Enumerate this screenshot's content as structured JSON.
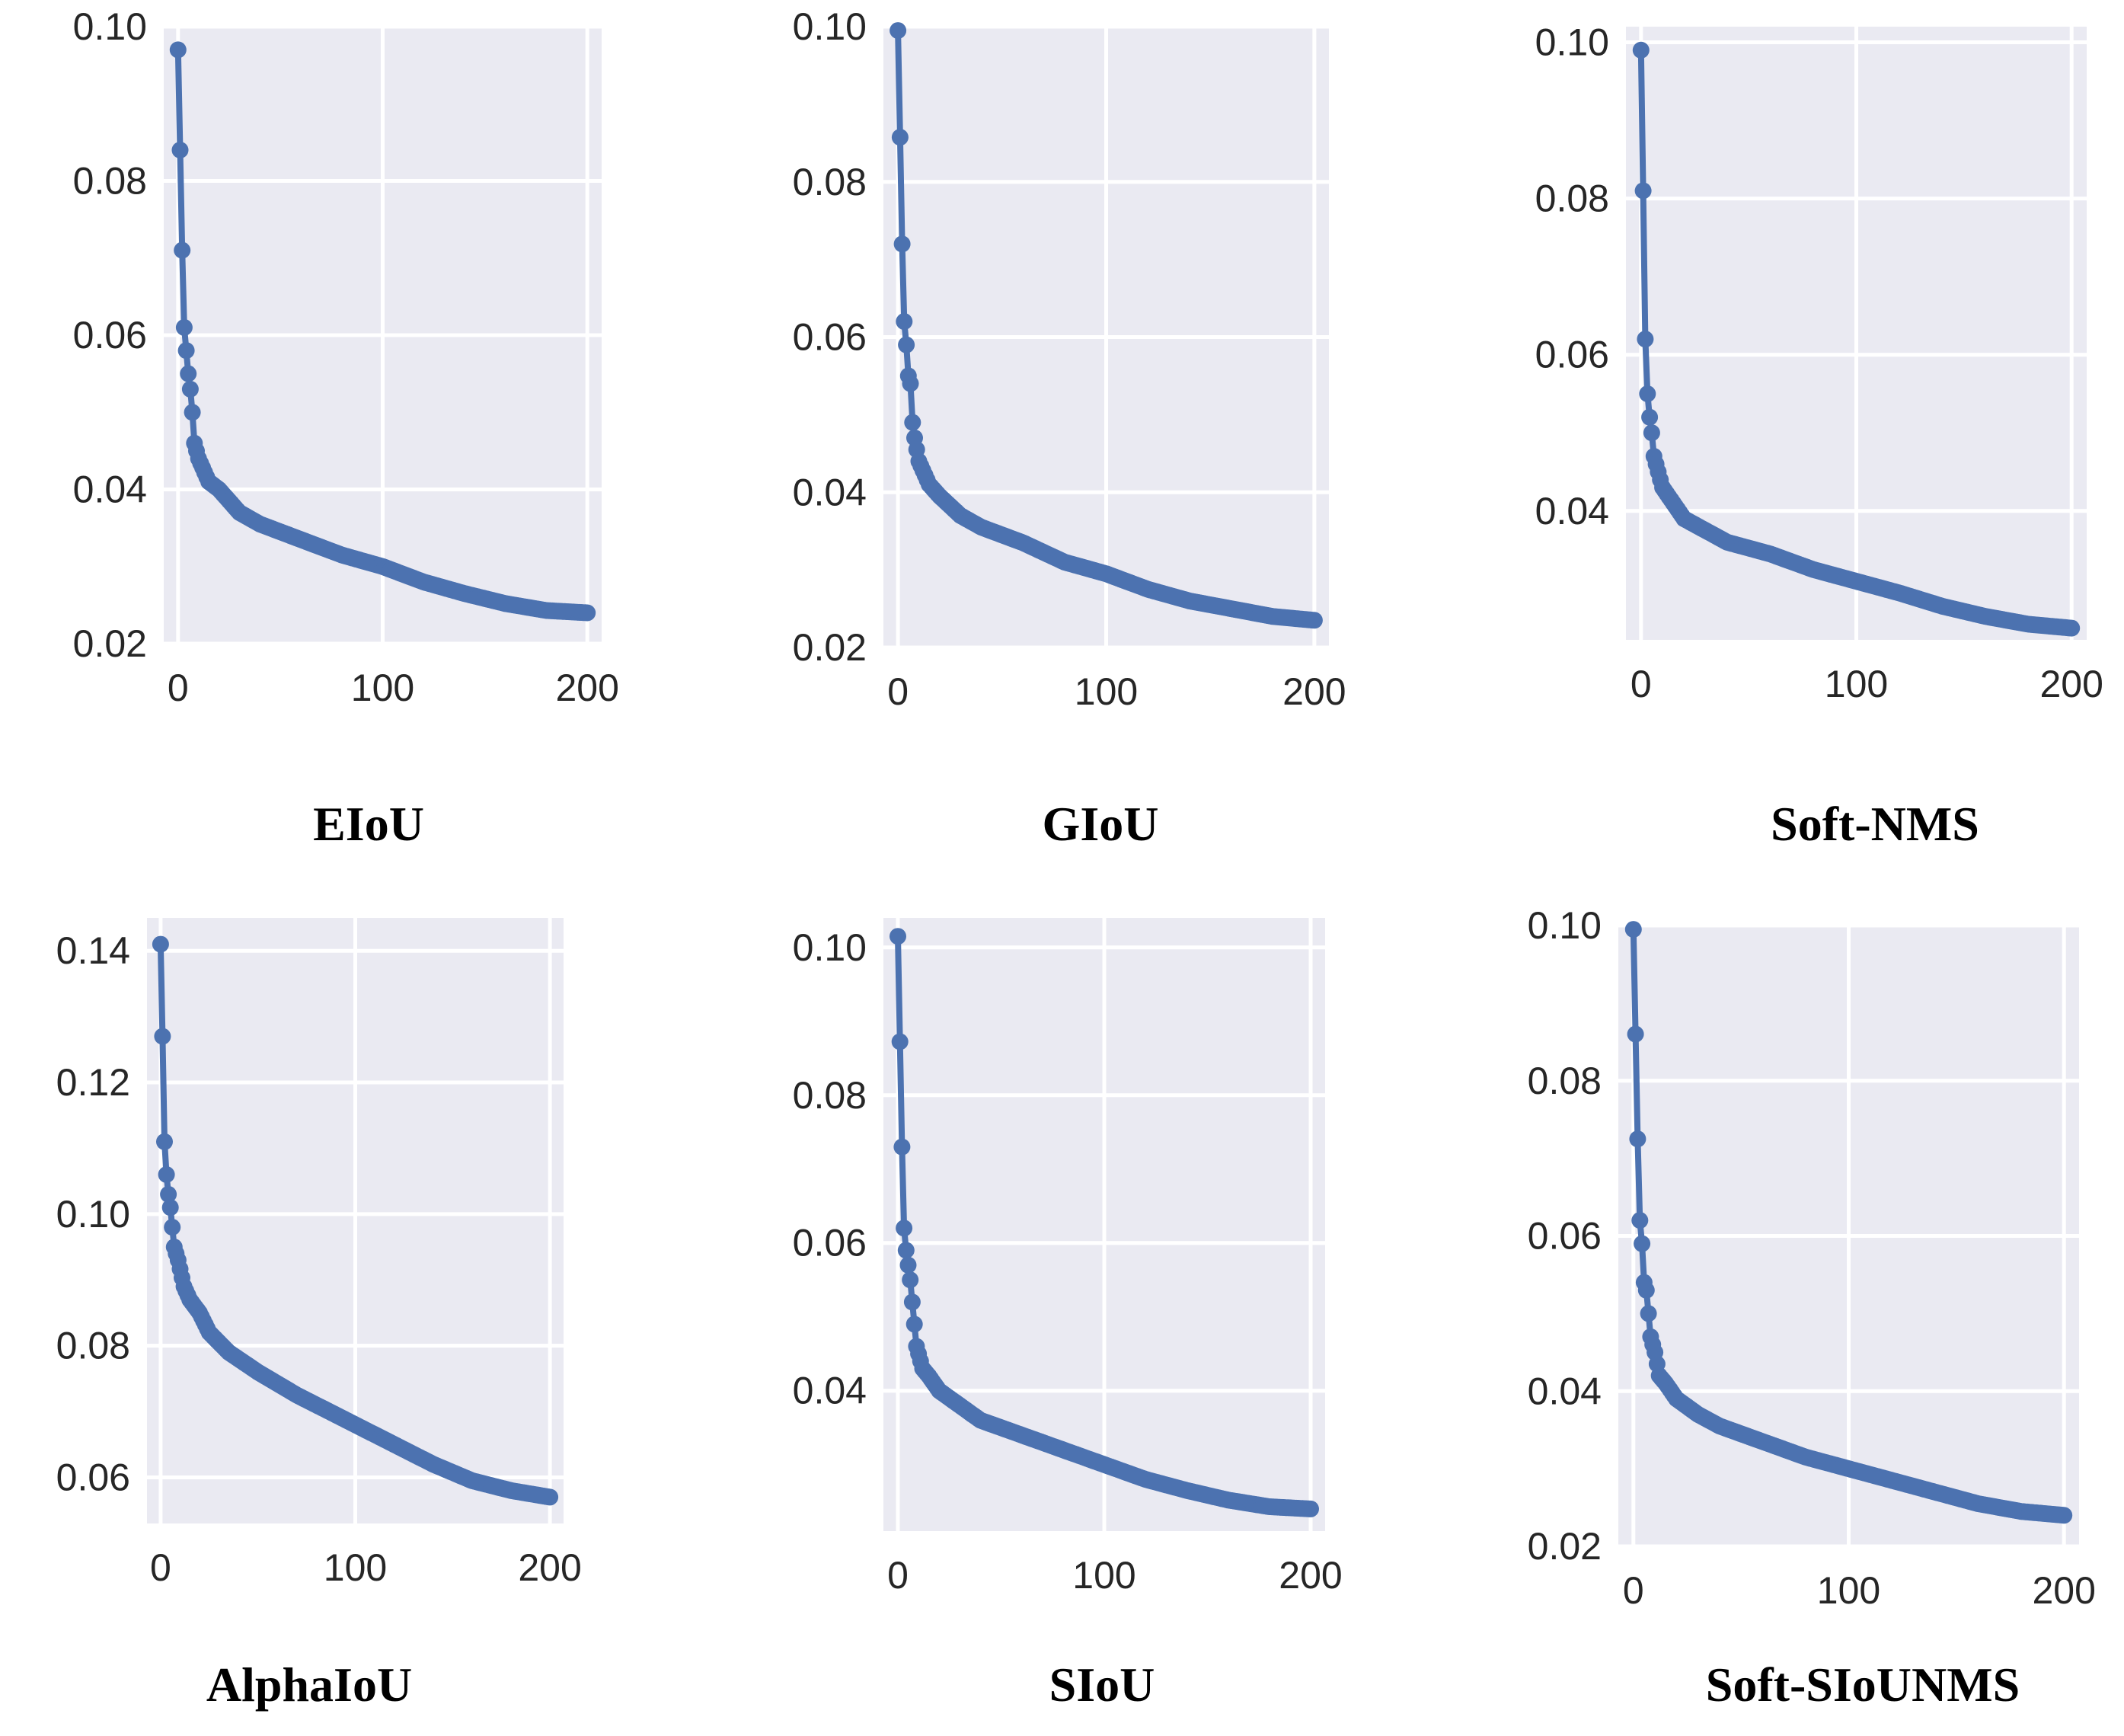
{
  "colors": {
    "series": "#4c72b0",
    "panel": "#eaeaf2",
    "grid": "#ffffff"
  },
  "chart_data": [
    {
      "type": "line",
      "title": "EIoU",
      "xlim": [
        0,
        200
      ],
      "ylim": [
        0.02,
        0.1
      ],
      "xticks": [
        0,
        100,
        200
      ],
      "xtick_labels": [
        "0",
        "100",
        "200"
      ],
      "yticks": [
        0.02,
        0.04,
        0.06,
        0.08,
        0.1
      ],
      "ytick_labels": [
        "0.02",
        "0.04",
        "0.06",
        "0.08",
        "0.10"
      ],
      "anchors": [
        [
          0,
          0.097
        ],
        [
          2,
          0.071
        ],
        [
          3,
          0.061
        ],
        [
          4,
          0.058
        ],
        [
          5,
          0.055
        ],
        [
          6,
          0.053
        ],
        [
          7,
          0.05
        ],
        [
          8,
          0.046
        ],
        [
          10,
          0.044
        ],
        [
          15,
          0.041
        ],
        [
          20,
          0.04
        ],
        [
          30,
          0.037
        ],
        [
          40,
          0.0355
        ],
        [
          60,
          0.0335
        ],
        [
          80,
          0.0315
        ],
        [
          100,
          0.03
        ],
        [
          120,
          0.028
        ],
        [
          140,
          0.0265
        ],
        [
          160,
          0.0252
        ],
        [
          180,
          0.0243
        ],
        [
          200,
          0.024
        ]
      ]
    },
    {
      "type": "line",
      "title": "GIoU",
      "xlim": [
        0,
        200
      ],
      "ylim": [
        0.02,
        0.1
      ],
      "xticks": [
        0,
        100,
        200
      ],
      "xtick_labels": [
        "0",
        "100",
        "200"
      ],
      "yticks": [
        0.02,
        0.04,
        0.06,
        0.08,
        0.1
      ],
      "ytick_labels": [
        "0.02",
        "0.04",
        "0.06",
        "0.08",
        "0.10"
      ],
      "anchors": [
        [
          0,
          0.0995
        ],
        [
          2,
          0.072
        ],
        [
          3,
          0.062
        ],
        [
          4,
          0.059
        ],
        [
          5,
          0.055
        ],
        [
          6,
          0.054
        ],
        [
          7,
          0.049
        ],
        [
          8,
          0.047
        ],
        [
          10,
          0.044
        ],
        [
          15,
          0.041
        ],
        [
          20,
          0.0395
        ],
        [
          30,
          0.037
        ],
        [
          40,
          0.0355
        ],
        [
          60,
          0.0335
        ],
        [
          80,
          0.031
        ],
        [
          100,
          0.0295
        ],
        [
          120,
          0.0275
        ],
        [
          140,
          0.026
        ],
        [
          160,
          0.025
        ],
        [
          180,
          0.024
        ],
        [
          200,
          0.0235
        ]
      ]
    },
    {
      "type": "line",
      "title": "Soft-NMS",
      "xlim": [
        0,
        200
      ],
      "ylim": [
        0.0235,
        0.102
      ],
      "xticks": [
        0,
        100,
        200
      ],
      "xtick_labels": [
        "0",
        "100",
        "200"
      ],
      "yticks": [
        0.04,
        0.06,
        0.08,
        0.1
      ],
      "ytick_labels": [
        "0.04",
        "0.06",
        "0.08",
        "0.10"
      ],
      "anchors": [
        [
          0,
          0.099
        ],
        [
          1,
          0.081
        ],
        [
          2,
          0.062
        ],
        [
          3,
          0.055
        ],
        [
          4,
          0.052
        ],
        [
          5,
          0.05
        ],
        [
          6,
          0.047
        ],
        [
          8,
          0.045
        ],
        [
          10,
          0.043
        ],
        [
          15,
          0.041
        ],
        [
          20,
          0.039
        ],
        [
          30,
          0.0375
        ],
        [
          40,
          0.036
        ],
        [
          60,
          0.0345
        ],
        [
          80,
          0.0325
        ],
        [
          100,
          0.031
        ],
        [
          120,
          0.0295
        ],
        [
          140,
          0.0278
        ],
        [
          160,
          0.0265
        ],
        [
          180,
          0.0255
        ],
        [
          200,
          0.025
        ]
      ]
    },
    {
      "type": "line",
      "title": "AlphaIoU",
      "xlim": [
        0,
        200
      ],
      "ylim": [
        0.053,
        0.145
      ],
      "xticks": [
        0,
        100,
        200
      ],
      "xtick_labels": [
        "0",
        "100",
        "200"
      ],
      "yticks": [
        0.06,
        0.08,
        0.1,
        0.12,
        0.14
      ],
      "ytick_labels": [
        "0.06",
        "0.08",
        "0.10",
        "0.12",
        "0.14"
      ],
      "anchors": [
        [
          0,
          0.141
        ],
        [
          1,
          0.127
        ],
        [
          2,
          0.111
        ],
        [
          3,
          0.106
        ],
        [
          4,
          0.103
        ],
        [
          5,
          0.101
        ],
        [
          6,
          0.098
        ],
        [
          7,
          0.095
        ],
        [
          9,
          0.093
        ],
        [
          12,
          0.089
        ],
        [
          15,
          0.087
        ],
        [
          20,
          0.085
        ],
        [
          25,
          0.082
        ],
        [
          35,
          0.079
        ],
        [
          50,
          0.076
        ],
        [
          70,
          0.0725
        ],
        [
          100,
          0.068
        ],
        [
          120,
          0.065
        ],
        [
          140,
          0.062
        ],
        [
          160,
          0.0595
        ],
        [
          180,
          0.058
        ],
        [
          200,
          0.057
        ]
      ]
    },
    {
      "type": "line",
      "title": "SIoU",
      "xlim": [
        0,
        200
      ],
      "ylim": [
        0.021,
        0.104
      ],
      "xticks": [
        0,
        100,
        200
      ],
      "xtick_labels": [
        "0",
        "100",
        "200"
      ],
      "yticks": [
        0.04,
        0.06,
        0.08,
        0.1
      ],
      "ytick_labels": [
        "0.04",
        "0.06",
        "0.08",
        "0.10"
      ],
      "anchors": [
        [
          0,
          0.1015
        ],
        [
          2,
          0.073
        ],
        [
          3,
          0.062
        ],
        [
          4,
          0.059
        ],
        [
          5,
          0.057
        ],
        [
          6,
          0.055
        ],
        [
          7,
          0.052
        ],
        [
          8,
          0.049
        ],
        [
          9,
          0.046
        ],
        [
          10,
          0.045
        ],
        [
          12,
          0.043
        ],
        [
          15,
          0.042
        ],
        [
          20,
          0.04
        ],
        [
          30,
          0.038
        ],
        [
          40,
          0.036
        ],
        [
          60,
          0.034
        ],
        [
          80,
          0.032
        ],
        [
          100,
          0.03
        ],
        [
          120,
          0.028
        ],
        [
          140,
          0.0265
        ],
        [
          160,
          0.0252
        ],
        [
          180,
          0.0243
        ],
        [
          200,
          0.024
        ]
      ]
    },
    {
      "type": "line",
      "title": "Soft-SIoUNMS",
      "xlim": [
        0,
        200
      ],
      "ylim": [
        0.02,
        0.1
      ],
      "xticks": [
        0,
        100,
        200
      ],
      "xtick_labels": [
        "0",
        "100",
        "200"
      ],
      "yticks": [
        0.02,
        0.04,
        0.06,
        0.08,
        0.1
      ],
      "ytick_labels": [
        "0.02",
        "0.04",
        "0.06",
        "0.08",
        "0.10"
      ],
      "anchors": [
        [
          0,
          0.0995
        ],
        [
          2,
          0.0725
        ],
        [
          3,
          0.062
        ],
        [
          4,
          0.059
        ],
        [
          5,
          0.054
        ],
        [
          6,
          0.053
        ],
        [
          7,
          0.05
        ],
        [
          8,
          0.047
        ],
        [
          10,
          0.045
        ],
        [
          12,
          0.042
        ],
        [
          15,
          0.041
        ],
        [
          20,
          0.039
        ],
        [
          30,
          0.037
        ],
        [
          40,
          0.0355
        ],
        [
          60,
          0.0335
        ],
        [
          80,
          0.0315
        ],
        [
          100,
          0.03
        ],
        [
          120,
          0.0285
        ],
        [
          140,
          0.027
        ],
        [
          160,
          0.0255
        ],
        [
          180,
          0.0245
        ],
        [
          200,
          0.024
        ]
      ]
    }
  ]
}
